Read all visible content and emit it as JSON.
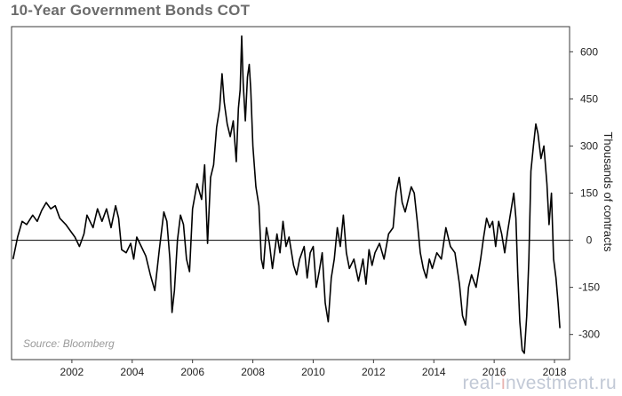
{
  "chart_data": {
    "type": "line",
    "title": "10-Year Government Bonds COT",
    "ylabel": "Thousands of contracts",
    "source": "Source: Bloomberg",
    "xlim": [
      2000.0,
      2018.5
    ],
    "ylim": [
      -380,
      680
    ],
    "yticks": [
      600,
      450,
      300,
      150,
      0,
      -150,
      -300
    ],
    "xticks": [
      2002,
      2004,
      2006,
      2008,
      2010,
      2012,
      2014,
      2016,
      2018
    ],
    "zero_line": true,
    "grid": false,
    "series": [
      {
        "color": "#000000",
        "points": [
          [
            2000.05,
            -60
          ],
          [
            2000.2,
            10
          ],
          [
            2000.35,
            60
          ],
          [
            2000.5,
            50
          ],
          [
            2000.7,
            80
          ],
          [
            2000.85,
            60
          ],
          [
            2001.0,
            95
          ],
          [
            2001.15,
            120
          ],
          [
            2001.3,
            100
          ],
          [
            2001.45,
            110
          ],
          [
            2001.6,
            70
          ],
          [
            2001.8,
            50
          ],
          [
            2001.95,
            30
          ],
          [
            2002.1,
            10
          ],
          [
            2002.25,
            -20
          ],
          [
            2002.4,
            20
          ],
          [
            2002.5,
            80
          ],
          [
            2002.7,
            40
          ],
          [
            2002.85,
            100
          ],
          [
            2003.0,
            60
          ],
          [
            2003.15,
            100
          ],
          [
            2003.3,
            40
          ],
          [
            2003.45,
            110
          ],
          [
            2003.55,
            70
          ],
          [
            2003.65,
            -30
          ],
          [
            2003.8,
            -40
          ],
          [
            2003.95,
            -10
          ],
          [
            2004.05,
            -60
          ],
          [
            2004.15,
            10
          ],
          [
            2004.3,
            -20
          ],
          [
            2004.45,
            -50
          ],
          [
            2004.6,
            -110
          ],
          [
            2004.75,
            -160
          ],
          [
            2004.9,
            -30
          ],
          [
            2005.05,
            90
          ],
          [
            2005.15,
            60
          ],
          [
            2005.25,
            -60
          ],
          [
            2005.32,
            -230
          ],
          [
            2005.4,
            -160
          ],
          [
            2005.5,
            0
          ],
          [
            2005.6,
            80
          ],
          [
            2005.7,
            50
          ],
          [
            2005.8,
            -60
          ],
          [
            2005.9,
            -100
          ],
          [
            2006.0,
            100
          ],
          [
            2006.15,
            180
          ],
          [
            2006.3,
            130
          ],
          [
            2006.4,
            240
          ],
          [
            2006.5,
            -10
          ],
          [
            2006.6,
            200
          ],
          [
            2006.7,
            240
          ],
          [
            2006.8,
            360
          ],
          [
            2006.9,
            420
          ],
          [
            2006.98,
            530
          ],
          [
            2007.05,
            440
          ],
          [
            2007.15,
            370
          ],
          [
            2007.25,
            330
          ],
          [
            2007.35,
            380
          ],
          [
            2007.45,
            250
          ],
          [
            2007.52,
            420
          ],
          [
            2007.58,
            480
          ],
          [
            2007.63,
            650
          ],
          [
            2007.68,
            500
          ],
          [
            2007.75,
            380
          ],
          [
            2007.82,
            520
          ],
          [
            2007.88,
            560
          ],
          [
            2007.93,
            480
          ],
          [
            2008.0,
            300
          ],
          [
            2008.1,
            170
          ],
          [
            2008.2,
            110
          ],
          [
            2008.28,
            -60
          ],
          [
            2008.35,
            -90
          ],
          [
            2008.45,
            40
          ],
          [
            2008.55,
            -10
          ],
          [
            2008.65,
            -90
          ],
          [
            2008.8,
            20
          ],
          [
            2008.9,
            -40
          ],
          [
            2009.0,
            60
          ],
          [
            2009.1,
            -20
          ],
          [
            2009.2,
            10
          ],
          [
            2009.35,
            -80
          ],
          [
            2009.45,
            -110
          ],
          [
            2009.55,
            -60
          ],
          [
            2009.7,
            -20
          ],
          [
            2009.8,
            -120
          ],
          [
            2009.9,
            -40
          ],
          [
            2010.0,
            -20
          ],
          [
            2010.1,
            -150
          ],
          [
            2010.2,
            -100
          ],
          [
            2010.3,
            -40
          ],
          [
            2010.4,
            -200
          ],
          [
            2010.5,
            -260
          ],
          [
            2010.6,
            -120
          ],
          [
            2010.7,
            -60
          ],
          [
            2010.8,
            40
          ],
          [
            2010.9,
            -20
          ],
          [
            2011.0,
            80
          ],
          [
            2011.1,
            -40
          ],
          [
            2011.2,
            -90
          ],
          [
            2011.35,
            -60
          ],
          [
            2011.5,
            -130
          ],
          [
            2011.65,
            -60
          ],
          [
            2011.75,
            -140
          ],
          [
            2011.85,
            -30
          ],
          [
            2011.95,
            -80
          ],
          [
            2012.05,
            -40
          ],
          [
            2012.2,
            -10
          ],
          [
            2012.35,
            -60
          ],
          [
            2012.5,
            20
          ],
          [
            2012.65,
            40
          ],
          [
            2012.75,
            150
          ],
          [
            2012.85,
            200
          ],
          [
            2012.95,
            120
          ],
          [
            2013.05,
            90
          ],
          [
            2013.15,
            130
          ],
          [
            2013.25,
            170
          ],
          [
            2013.35,
            150
          ],
          [
            2013.45,
            60
          ],
          [
            2013.55,
            -40
          ],
          [
            2013.65,
            -90
          ],
          [
            2013.75,
            -120
          ],
          [
            2013.85,
            -60
          ],
          [
            2013.95,
            -90
          ],
          [
            2014.1,
            -40
          ],
          [
            2014.25,
            -60
          ],
          [
            2014.4,
            40
          ],
          [
            2014.55,
            -20
          ],
          [
            2014.7,
            -40
          ],
          [
            2014.85,
            -140
          ],
          [
            2014.95,
            -240
          ],
          [
            2015.05,
            -270
          ],
          [
            2015.15,
            -150
          ],
          [
            2015.25,
            -110
          ],
          [
            2015.4,
            -150
          ],
          [
            2015.55,
            -60
          ],
          [
            2015.65,
            10
          ],
          [
            2015.75,
            70
          ],
          [
            2015.85,
            40
          ],
          [
            2015.95,
            60
          ],
          [
            2016.05,
            -20
          ],
          [
            2016.15,
            60
          ],
          [
            2016.25,
            20
          ],
          [
            2016.35,
            -40
          ],
          [
            2016.45,
            30
          ],
          [
            2016.55,
            90
          ],
          [
            2016.65,
            150
          ],
          [
            2016.72,
            70
          ],
          [
            2016.78,
            -100
          ],
          [
            2016.85,
            -260
          ],
          [
            2016.93,
            -350
          ],
          [
            2017.0,
            -360
          ],
          [
            2017.08,
            -240
          ],
          [
            2017.15,
            -60
          ],
          [
            2017.22,
            220
          ],
          [
            2017.3,
            300
          ],
          [
            2017.38,
            370
          ],
          [
            2017.45,
            340
          ],
          [
            2017.55,
            260
          ],
          [
            2017.65,
            300
          ],
          [
            2017.75,
            180
          ],
          [
            2017.82,
            50
          ],
          [
            2017.9,
            150
          ],
          [
            2017.97,
            -60
          ],
          [
            2018.05,
            -120
          ],
          [
            2018.12,
            -200
          ],
          [
            2018.18,
            -280
          ]
        ]
      }
    ]
  },
  "watermark": {
    "part1": "real-",
    "accent": "i",
    "part2": "nvestment.ru"
  }
}
